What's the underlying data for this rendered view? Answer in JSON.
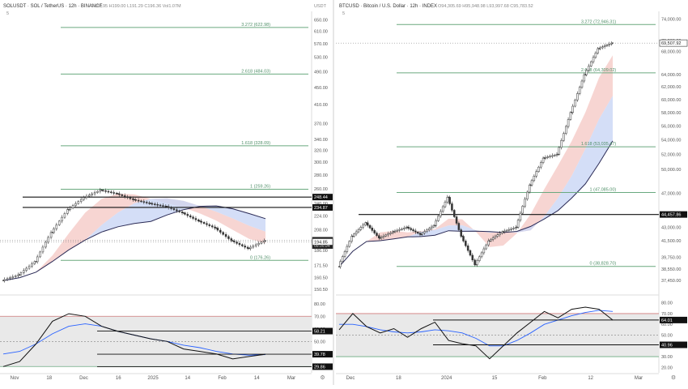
{
  "app": {
    "name": "TradingView",
    "accent_color": "#2962ff"
  },
  "chart_data": [
    {
      "type": "line",
      "id": "sol",
      "title": "SOLUSDT · SOL / TetherUS · 12h · BINANCE",
      "ohlc": "O192.95 H199.00 L191.29 C196.36 Vol1.07M",
      "indicator_caption": "5",
      "ylabel": "USDT",
      "ylim": [
        150,
        680
      ],
      "y_scale": "log",
      "yticks": [
        "650.00",
        "610.00",
        "570.00",
        "530.00",
        "490.00",
        "450.00",
        "410.00",
        "370.00",
        "340.00",
        "320.00",
        "300.00",
        "280.00",
        "260.00",
        "240.00",
        "224.00",
        "208.00",
        "186.00",
        "171.50",
        "160.50",
        "150.50"
      ],
      "x_tick_labels": [
        "Nov",
        "18",
        "Dec",
        "16",
        "2025",
        "14",
        "Feb",
        "14",
        "Mar"
      ],
      "series": [
        {
          "kind": "price",
          "color": "#555555",
          "x": [
            0,
            0.5,
            1,
            1.5,
            2,
            2.5,
            3,
            3.5,
            4,
            4.5,
            5,
            5.5,
            6,
            6.5,
            7,
            7.5,
            8
          ],
          "y": [
            158,
            163,
            175,
            205,
            232,
            248,
            258,
            253,
            245,
            240,
            236,
            228,
            218,
            210,
            196,
            188,
            196
          ]
        }
      ],
      "fib_levels": [
        {
          "label": "3.272 (622.98)",
          "value": 622.98
        },
        {
          "label": "2.618 (484.03)",
          "value": 484.03
        },
        {
          "label": "1.618 (328.09)",
          "value": 328.09
        },
        {
          "label": "1 (259.26)",
          "value": 259.26
        },
        {
          "label": "0 (176.26)",
          "value": 176.26
        }
      ],
      "levels": [
        {
          "label": "248.44",
          "value": 248.44
        },
        {
          "label": "234.87",
          "value": 234.87
        }
      ],
      "price_labels": [
        {
          "label": "196.36",
          "sub": "08:30:34",
          "value": 196.36
        },
        {
          "label": "194.85",
          "value": 194.85
        }
      ],
      "rsi": {
        "yticks": [
          "80.00",
          "70.00",
          "60.00",
          "50.00",
          "40.00",
          "30.00"
        ],
        "ylim": [
          25,
          85
        ],
        "rsi_values": [
          30,
          34,
          48,
          66,
          72,
          70,
          62,
          58,
          55,
          52,
          50,
          44,
          42,
          40,
          36,
          38,
          39.8
        ],
        "ma_values": [
          40,
          42,
          48,
          56,
          62,
          64,
          62,
          58,
          55,
          52,
          50,
          47,
          45,
          42,
          40,
          39,
          39.5
        ],
        "labels": [
          "58.21",
          "39.78",
          "29.86"
        ]
      }
    },
    {
      "type": "line",
      "id": "btc",
      "title": "BTCUSD · Bitcoin / U.S. Dollar · 12h · INDEX",
      "ohlc": "O94,305.69 H95,948.98 L93,997.68 C95,783.52",
      "indicator_caption": "5",
      "ylim": [
        36500,
        75500
      ],
      "y_scale": "log",
      "yticks": [
        "74,000.00",
        "70,000.00",
        "68,000.00",
        "64,000.00",
        "62,000.00",
        "60,000.00",
        "58,000.00",
        "56,000.00",
        "54,000.00",
        "52,000.00",
        "50,000.00",
        "47,000.00",
        "44,500.00",
        "43,000.00",
        "41,500.00",
        "39,750.00",
        "38,550.00",
        "37,450.00"
      ],
      "x_tick_labels": [
        "Dec",
        "18",
        "2024",
        "15",
        "Feb",
        "12",
        "Mar"
      ],
      "series": [
        {
          "kind": "price",
          "color": "#555555",
          "x": [
            0,
            0.5,
            1,
            1.5,
            2,
            2.5,
            3,
            3.5,
            4,
            4.5,
            5,
            5.5,
            6,
            6.5,
            7,
            7.5,
            8,
            8.5,
            9,
            9.5,
            10
          ],
          "y": [
            38800,
            42000,
            43500,
            41800,
            42500,
            43000,
            42200,
            43200,
            46500,
            42000,
            39000,
            41500,
            42500,
            43000,
            48000,
            51500,
            52000,
            58000,
            64000,
            68500,
            69500
          ]
        }
      ],
      "fib_levels": [
        {
          "label": "3.272 (72,946.31)",
          "value": 72946.31
        },
        {
          "label": "2.618 (64,309.02)",
          "value": 64309.02
        },
        {
          "label": "1.618 (53,035.47)",
          "value": 53035.47
        },
        {
          "label": "1 (47,085.00)",
          "value": 47085
        },
        {
          "label": "0 (38,828.70)",
          "value": 38828.7
        }
      ],
      "levels": [
        {
          "label": "44,457.86",
          "value": 44457.86
        }
      ],
      "price_labels": [
        {
          "label": "69,507.92",
          "value": 69507.92
        }
      ],
      "rsi": {
        "yticks": [
          "80.00",
          "70.00",
          "60.00",
          "50.00",
          "40.00",
          "30.00",
          "20.00"
        ],
        "ylim": [
          15,
          85
        ],
        "rsi_values": [
          55,
          70,
          58,
          52,
          56,
          48,
          56,
          62,
          45,
          42,
          40,
          28,
          40,
          52,
          62,
          72,
          66,
          74,
          76,
          74,
          64
        ],
        "ma_values": [
          60,
          60,
          58,
          55,
          53,
          52,
          53,
          55,
          54,
          52,
          47,
          40,
          40,
          45,
          52,
          60,
          64,
          68,
          71,
          73,
          72
        ],
        "labels": [
          "64.01",
          "40.96"
        ]
      }
    }
  ]
}
